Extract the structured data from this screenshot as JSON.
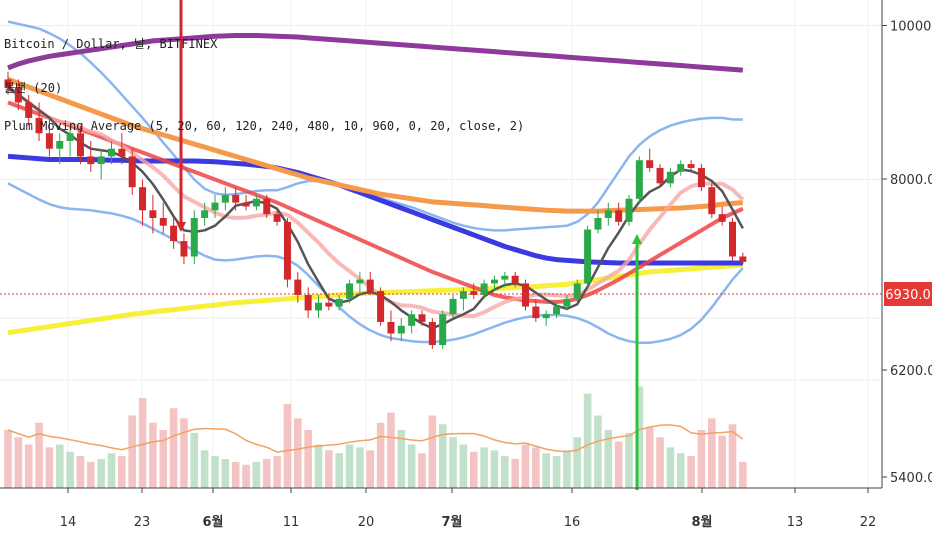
{
  "legend": {
    "line1": "Bitcoin / Dollar, 날, BITFINEX",
    "line2": "볼밴 (20)",
    "line3": "Plum Moving Average (5, 20, 60, 120, 240, 480, 10, 960, 0, 20, close, 2)"
  },
  "price_tag": "6930.0",
  "colors": {
    "up": "#2ba84a",
    "down": "#d1282b",
    "ma5": "#555555",
    "ma20": "#ef4444",
    "ma60": "#f59a4a",
    "ma120": "#3a3ae0",
    "ma240": "#8e3a9a",
    "ma960": "#f7f03a",
    "bb": "#8ab6f0",
    "price_line": "#e53935"
  },
  "chart_data": {
    "type": "candlestick",
    "title": "Bitcoin / Dollar, 날, BITFINEX",
    "y_ticks": [
      "10000.0",
      "8000.0",
      "6200.0",
      "5400.0"
    ],
    "x_ticks": [
      "14",
      "23",
      "6월",
      "11",
      "20",
      "7월",
      "16",
      "8월",
      "13",
      "22"
    ],
    "last_price": 6930,
    "ohlc": [
      [
        9300,
        9400,
        9100,
        9200
      ],
      [
        9200,
        9300,
        8900,
        9000
      ],
      [
        9000,
        9100,
        8700,
        8800
      ],
      [
        8800,
        9000,
        8500,
        8600
      ],
      [
        8600,
        8800,
        8300,
        8400
      ],
      [
        8400,
        8600,
        8200,
        8500
      ],
      [
        8500,
        8700,
        8300,
        8600
      ],
      [
        8600,
        8700,
        8200,
        8300
      ],
      [
        8300,
        8500,
        8100,
        8200
      ],
      [
        8200,
        8400,
        8000,
        8300
      ],
      [
        8300,
        8500,
        8200,
        8400
      ],
      [
        8400,
        8600,
        8200,
        8300
      ],
      [
        8300,
        8400,
        7800,
        7900
      ],
      [
        7900,
        8000,
        7400,
        7600
      ],
      [
        7600,
        7800,
        7300,
        7500
      ],
      [
        7500,
        7700,
        7300,
        7400
      ],
      [
        7400,
        7500,
        7100,
        7200
      ],
      [
        7200,
        7300,
        6900,
        7000
      ],
      [
        7000,
        7600,
        6900,
        7500
      ],
      [
        7500,
        7700,
        7400,
        7600
      ],
      [
        7600,
        7800,
        7500,
        7700
      ],
      [
        7700,
        7900,
        7600,
        7800
      ],
      [
        7800,
        7900,
        7600,
        7700
      ],
      [
        7700,
        7800,
        7600,
        7650
      ],
      [
        7650,
        7800,
        7600,
        7750
      ],
      [
        7750,
        7800,
        7500,
        7550
      ],
      [
        7550,
        7600,
        7400,
        7450
      ],
      [
        7450,
        7500,
        6600,
        6700
      ],
      [
        6700,
        6800,
        6400,
        6500
      ],
      [
        6500,
        6600,
        6200,
        6300
      ],
      [
        6300,
        6500,
        6200,
        6400
      ],
      [
        6400,
        6500,
        6300,
        6350
      ],
      [
        6350,
        6500,
        6300,
        6450
      ],
      [
        6450,
        6700,
        6400,
        6650
      ],
      [
        6650,
        6800,
        6500,
        6700
      ],
      [
        6700,
        6800,
        6500,
        6550
      ],
      [
        6550,
        6600,
        6100,
        6150
      ],
      [
        6150,
        6300,
        5900,
        6000
      ],
      [
        6000,
        6200,
        5900,
        6100
      ],
      [
        6100,
        6300,
        6000,
        6250
      ],
      [
        6250,
        6300,
        6100,
        6150
      ],
      [
        6150,
        6200,
        5800,
        5850
      ],
      [
        5850,
        6300,
        5800,
        6250
      ],
      [
        6250,
        6500,
        6200,
        6450
      ],
      [
        6450,
        6600,
        6300,
        6550
      ],
      [
        6550,
        6650,
        6450,
        6500
      ],
      [
        6500,
        6700,
        6450,
        6650
      ],
      [
        6650,
        6750,
        6550,
        6700
      ],
      [
        6700,
        6800,
        6600,
        6750
      ],
      [
        6750,
        6800,
        6600,
        6650
      ],
      [
        6650,
        6700,
        6300,
        6350
      ],
      [
        6350,
        6450,
        6150,
        6200
      ],
      [
        6200,
        6300,
        6100,
        6250
      ],
      [
        6250,
        6400,
        6200,
        6350
      ],
      [
        6350,
        6500,
        6300,
        6450
      ],
      [
        6450,
        6700,
        6400,
        6650
      ],
      [
        6650,
        7400,
        6600,
        7350
      ],
      [
        7350,
        7600,
        7300,
        7500
      ],
      [
        7500,
        7700,
        7400,
        7600
      ],
      [
        7600,
        7700,
        7400,
        7450
      ],
      [
        7450,
        7800,
        7400,
        7750
      ],
      [
        7750,
        8300,
        7700,
        8250
      ],
      [
        8250,
        8400,
        8100,
        8150
      ],
      [
        8150,
        8200,
        7900,
        7950
      ],
      [
        7950,
        8150,
        7900,
        8100
      ],
      [
        8100,
        8250,
        8050,
        8200
      ],
      [
        8200,
        8250,
        8100,
        8150
      ],
      [
        8150,
        8200,
        7850,
        7900
      ],
      [
        7900,
        7950,
        7500,
        7550
      ],
      [
        7550,
        7650,
        7400,
        7450
      ],
      [
        7450,
        7500,
        6950,
        7000
      ],
      [
        7000,
        7050,
        6900,
        6930
      ]
    ],
    "volume": [
      40,
      35,
      30,
      45,
      28,
      30,
      25,
      22,
      18,
      20,
      24,
      22,
      50,
      62,
      45,
      40,
      55,
      48,
      38,
      26,
      22,
      20,
      18,
      16,
      18,
      20,
      22,
      58,
      48,
      40,
      30,
      26,
      24,
      30,
      28,
      26,
      45,
      52,
      40,
      30,
      24,
      50,
      44,
      35,
      30,
      25,
      28,
      26,
      22,
      20,
      30,
      28,
      24,
      22,
      26,
      35,
      65,
      50,
      40,
      32,
      38,
      70,
      42,
      35,
      28,
      24,
      22,
      40,
      48,
      36,
      44,
      18
    ],
    "volume_up": [
      false,
      false,
      false,
      false,
      false,
      true,
      true,
      false,
      false,
      true,
      true,
      false,
      false,
      false,
      false,
      false,
      false,
      false,
      true,
      true,
      true,
      true,
      false,
      false,
      true,
      false,
      false,
      false,
      false,
      false,
      true,
      false,
      true,
      true,
      true,
      false,
      false,
      false,
      true,
      true,
      false,
      false,
      true,
      true,
      true,
      false,
      true,
      true,
      true,
      false,
      false,
      false,
      true,
      true,
      true,
      true,
      true,
      true,
      true,
      false,
      true,
      true,
      false,
      false,
      true,
      true,
      false,
      false,
      false,
      false,
      false,
      false
    ],
    "ma960": [
      6010,
      6030,
      6050,
      6070,
      6090,
      6110,
      6130,
      6150,
      6170,
      6190,
      6210,
      6230,
      6250,
      6265,
      6280,
      6295,
      6310,
      6325,
      6340,
      6355,
      6370,
      6385,
      6400,
      6410,
      6420,
      6430,
      6440,
      6450,
      6460,
      6470,
      6480,
      6490,
      6500,
      6510,
      6520,
      6525,
      6530,
      6535,
      6540,
      6545,
      6550,
      6555,
      6560,
      6565,
      6570,
      6575,
      6580,
      6585,
      6590,
      6595,
      6600,
      6610,
      6620,
      6630,
      6640,
      6660,
      6680,
      6700,
      6720,
      6740,
      6760,
      6780,
      6800,
      6810,
      6820,
      6830,
      6840,
      6850,
      6860,
      6870,
      6880,
      6890
    ],
    "ma240": [
      9450,
      9500,
      9540,
      9570,
      9600,
      9620,
      9640,
      9660,
      9680,
      9700,
      9720,
      9740,
      9760,
      9780,
      9800,
      9810,
      9820,
      9830,
      9840,
      9850,
      9860,
      9865,
      9870,
      9870,
      9870,
      9865,
      9860,
      9855,
      9850,
      9840,
      9830,
      9820,
      9810,
      9800,
      9790,
      9780,
      9770,
      9760,
      9750,
      9740,
      9730,
      9720,
      9710,
      9700,
      9690,
      9680,
      9670,
      9660,
      9650,
      9640,
      9630,
      9620,
      9610,
      9600,
      9590,
      9580,
      9570,
      9560,
      9550,
      9540,
      9530,
      9520,
      9510,
      9500,
      9490,
      9480,
      9470,
      9460,
      9450,
      9440,
      9430,
      9420
    ],
    "ma120": [
      8300,
      8290,
      8280,
      8270,
      8260,
      8260,
      8260,
      8260,
      8260,
      8255,
      8250,
      8250,
      8245,
      8240,
      8240,
      8240,
      8240,
      8240,
      8240,
      8235,
      8230,
      8220,
      8210,
      8200,
      8185,
      8170,
      8150,
      8120,
      8090,
      8050,
      8010,
      7970,
      7930,
      7880,
      7830,
      7780,
      7730,
      7680,
      7630,
      7580,
      7530,
      7480,
      7430,
      7380,
      7330,
      7280,
      7230,
      7180,
      7130,
      7090,
      7050,
      7010,
      6980,
      6960,
      6950,
      6940,
      6930,
      6925,
      6920,
      6915,
      6915,
      6915,
      6915,
      6915,
      6915,
      6915,
      6915,
      6915,
      6915,
      6915,
      6915,
      6915
    ],
    "ma60": [
      9300,
      9250,
      9200,
      9150,
      9100,
      9050,
      9000,
      8950,
      8900,
      8850,
      8800,
      8750,
      8700,
      8660,
      8620,
      8580,
      8540,
      8500,
      8460,
      8420,
      8380,
      8340,
      8300,
      8260,
      8220,
      8180,
      8140,
      8100,
      8060,
      8020,
      7990,
      7960,
      7930,
      7900,
      7870,
      7840,
      7810,
      7790,
      7770,
      7750,
      7730,
      7710,
      7700,
      7690,
      7680,
      7670,
      7660,
      7650,
      7640,
      7630,
      7620,
      7610,
      7600,
      7595,
      7590,
      7590,
      7590,
      7590,
      7595,
      7600,
      7605,
      7610,
      7615,
      7620,
      7625,
      7630,
      7640,
      7650,
      7660,
      7680,
      7690,
      7700
    ],
    "ma20": [
      9000,
      8950,
      8900,
      8850,
      8800,
      8750,
      8700,
      8650,
      8600,
      8550,
      8500,
      8450,
      8400,
      8350,
      8300,
      8250,
      8200,
      8150,
      8100,
      8050,
      8000,
      7950,
      7900,
      7850,
      7800,
      7750,
      7700,
      7640,
      7580,
      7520,
      7460,
      7400,
      7340,
      7280,
      7220,
      7160,
      7100,
      7040,
      6980,
      6920,
      6860,
      6800,
      6750,
      6700,
      6650,
      6600,
      6550,
      6500,
      6470,
      6450,
      6430,
      6420,
      6410,
      6410,
      6420,
      6450,
      6500,
      6560,
      6630,
      6700,
      6780,
      6860,
      6940,
      7020,
      7100,
      7180,
      7260,
      7340,
      7420,
      7500,
      7560,
      7620
    ],
    "bb_upper": [
      10050,
      10020,
      9990,
      9960,
      9900,
      9830,
      9740,
      9640,
      9520,
      9390,
      9250,
      9100,
      8950,
      8800,
      8640,
      8480,
      8320,
      8160,
      8000,
      7880,
      7820,
      7800,
      7810,
      7830,
      7850,
      7860,
      7860,
      7900,
      7950,
      7980,
      7980,
      7960,
      7920,
      7880,
      7840,
      7800,
      7760,
      7720,
      7680,
      7640,
      7590,
      7540,
      7490,
      7440,
      7400,
      7370,
      7350,
      7340,
      7340,
      7350,
      7360,
      7370,
      7380,
      7390,
      7400,
      7450,
      7550,
      7700,
      7900,
      8100,
      8300,
      8450,
      8560,
      8640,
      8700,
      8740,
      8770,
      8790,
      8800,
      8800,
      8780,
      8780
    ],
    "bb_lower": [
      7950,
      7880,
      7810,
      7740,
      7680,
      7640,
      7620,
      7610,
      7600,
      7580,
      7560,
      7530,
      7490,
      7430,
      7360,
      7290,
      7220,
      7150,
      7080,
      7010,
      6960,
      6950,
      6960,
      6980,
      7000,
      7010,
      7000,
      6960,
      6880,
      6760,
      6620,
      6480,
      6340,
      6220,
      6120,
      6040,
      5980,
      5940,
      5920,
      5900,
      5890,
      5890,
      5900,
      5920,
      5950,
      5990,
      6040,
      6090,
      6140,
      6180,
      6210,
      6230,
      6240,
      6240,
      6230,
      6200,
      6150,
      6080,
      6000,
      5940,
      5900,
      5880,
      5880,
      5900,
      5930,
      5980,
      6060,
      6180,
      6340,
      6520,
      6700,
      6850
    ]
  }
}
